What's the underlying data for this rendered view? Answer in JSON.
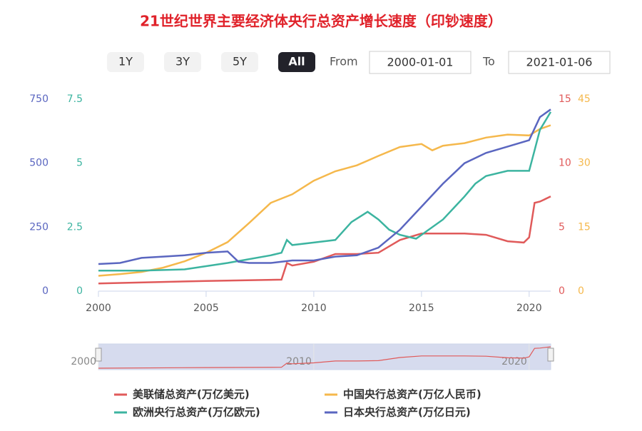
{
  "chart_data": {
    "type": "line",
    "title": "21世纪世界主要经济体央行总资产增长速度（印钞速度）",
    "range_selector": {
      "buttons": [
        "1Y",
        "3Y",
        "5Y",
        "All"
      ],
      "selected": "All",
      "from_label": "From",
      "from": "2000-01-01",
      "to_label": "To",
      "to": "2021-01-06"
    },
    "xlim": [
      2000,
      2021
    ],
    "xticks": [
      2000,
      2005,
      2010,
      2015,
      2020
    ],
    "series": [
      {
        "name": "美联储总资产(万亿美元)",
        "color": "#e05a5a",
        "side": "right",
        "ylim": [
          0,
          15
        ],
        "yticks": [
          0,
          5,
          10,
          15
        ],
        "x": [
          2000,
          2005,
          2008.5,
          2008.75,
          2009,
          2010,
          2011,
          2012,
          2013,
          2014,
          2015,
          2016,
          2017,
          2018,
          2019,
          2019.75,
          2020,
          2020.25,
          2020.5,
          2021
        ],
        "values": [
          0.6,
          0.8,
          0.9,
          2.2,
          2.0,
          2.3,
          2.9,
          2.9,
          3.0,
          4.0,
          4.5,
          4.5,
          4.5,
          4.4,
          3.9,
          3.8,
          4.2,
          6.9,
          7.0,
          7.4
        ]
      },
      {
        "name": "中国央行总资产(万亿人民币)",
        "color": "#f5b84c",
        "side": "right",
        "ylim": [
          0,
          45
        ],
        "yticks": [
          0,
          15,
          30,
          45
        ],
        "x": [
          2000,
          2001,
          2002,
          2003,
          2004,
          2005,
          2006,
          2007,
          2008,
          2009,
          2010,
          2011,
          2012,
          2013,
          2014,
          2015,
          2015.5,
          2016,
          2017,
          2018,
          2019,
          2020,
          2020.5,
          2021
        ],
        "values": [
          3.6,
          4.0,
          4.5,
          5.5,
          7.0,
          9.0,
          11.5,
          16.0,
          20.7,
          22.7,
          25.9,
          28.1,
          29.5,
          31.7,
          33.8,
          34.5,
          33.0,
          34.1,
          34.7,
          36.0,
          36.7,
          36.5,
          38.0,
          38.9
        ]
      },
      {
        "name": "欧洲央行总资产(万亿欧元)",
        "color": "#3cb4a0",
        "side": "left",
        "ylim": [
          0,
          7.5
        ],
        "yticks": [
          0,
          2.5,
          5,
          7.5
        ],
        "x": [
          2000,
          2002,
          2004,
          2006,
          2008,
          2008.5,
          2008.75,
          2009,
          2010,
          2011,
          2011.75,
          2012.5,
          2013,
          2013.5,
          2014,
          2014.75,
          2015,
          2016,
          2017,
          2017.5,
          2018,
          2019,
          2020,
          2020.25,
          2020.5,
          2021
        ],
        "values": [
          0.8,
          0.8,
          0.85,
          1.1,
          1.4,
          1.5,
          2.0,
          1.8,
          1.9,
          2.0,
          2.7,
          3.1,
          2.8,
          2.4,
          2.2,
          2.05,
          2.2,
          2.8,
          3.7,
          4.2,
          4.5,
          4.7,
          4.7,
          5.5,
          6.3,
          7.0
        ]
      },
      {
        "name": "日本央行总资产(万亿日元)",
        "color": "#5a66c0",
        "side": "left",
        "ylim": [
          0,
          750
        ],
        "yticks": [
          0,
          250,
          500,
          750
        ],
        "x": [
          2000,
          2001,
          2002,
          2003,
          2004,
          2005,
          2006,
          2006.5,
          2007,
          2008,
          2009,
          2010,
          2011,
          2012,
          2013,
          2014,
          2015,
          2016,
          2017,
          2018,
          2019,
          2020,
          2020.5,
          2021
        ],
        "values": [
          106,
          110,
          130,
          135,
          140,
          150,
          155,
          115,
          110,
          110,
          120,
          120,
          135,
          140,
          170,
          240,
          330,
          420,
          500,
          540,
          565,
          590,
          680,
          710
        ]
      }
    ]
  }
}
